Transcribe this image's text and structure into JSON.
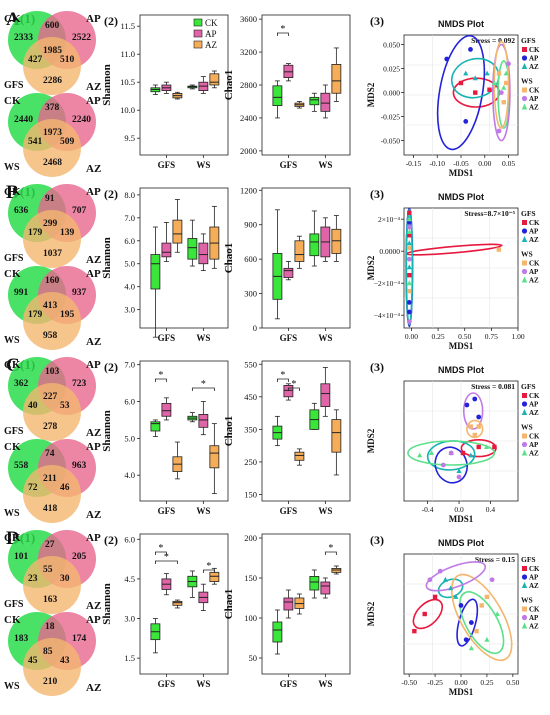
{
  "figure": {
    "colors": {
      "CK": "#39e639",
      "AP": "#e065a8",
      "AZ": "#f5ad5a",
      "venn_CK": "#29dd4b",
      "venn_AP": "#e8668f",
      "venn_AZ": "#f4b66f",
      "ellipse_CK": "#e8193f",
      "ellipse_AP": "#2323d9",
      "ellipse_AZ": "#19b3b3",
      "ellipse_WS_AP": "#c07ae6",
      "ellipse_WS_AZ": "#5ce08a"
    },
    "groups": [
      "CK",
      "AP",
      "AZ"
    ],
    "sites": [
      "GFS",
      "WS"
    ],
    "panels": [
      {
        "letter": "A",
        "sub1": "(1)",
        "sub2": "(2)",
        "sub3": "(3)",
        "venn": [
          {
            "site": "GFS",
            "only_CK": "2333",
            "only_AP": "2522",
            "only_AZ": "2286",
            "CK_AP": "600",
            "CK_AZ": "427",
            "AP_AZ": "510",
            "all": "1985"
          },
          {
            "site": "WS",
            "only_CK": "2440",
            "only_AP": "2240",
            "only_AZ": "2468",
            "CK_AP": "378",
            "CK_AZ": "541",
            "AP_AZ": "509",
            "all": "1973"
          }
        ],
        "shannon": {
          "ylabel": "Shannon",
          "ticks": [
            "9.5",
            "10.0",
            "10.5",
            "11.0",
            "11.5"
          ],
          "ylim": [
            9.2,
            11.7
          ],
          "sig": []
        },
        "chao": {
          "ylabel": "Chao1",
          "ticks": [
            "2000",
            "2400",
            "2800",
            "3200",
            "3600"
          ],
          "ylim": [
            1950,
            3650
          ],
          "sig": [
            {
              "site": 0,
              "a": 0,
              "b": 1,
              "label": "*"
            }
          ]
        },
        "nmds": {
          "title": "NMDS Plot",
          "stress": "Stress = 0.092",
          "xlabel": "MDS1",
          "ylabel": "MDS2",
          "xticks": [
            "-0.15",
            "-0.10",
            "-0.05",
            "0.00",
            "0.05"
          ],
          "yticks": [
            "-0.050",
            "-0.025",
            "0.000",
            "0.025",
            "0.050"
          ],
          "xlim": [
            -0.17,
            0.07
          ],
          "ylim": [
            -0.065,
            0.06
          ]
        }
      },
      {
        "letter": "B",
        "sub1": "(1)",
        "sub2": "(2)",
        "sub3": "(3)",
        "venn": [
          {
            "site": "GFS",
            "only_CK": "636",
            "only_AP": "707",
            "only_AZ": "1037",
            "CK_AP": "91",
            "CK_AZ": "179",
            "AP_AZ": "139",
            "all": "299"
          },
          {
            "site": "WS",
            "only_CK": "991",
            "only_AP": "937",
            "only_AZ": "958",
            "CK_AP": "160",
            "CK_AZ": "179",
            "AP_AZ": "195",
            "all": "413"
          }
        ],
        "shannon": {
          "ylabel": "Shannon",
          "ticks": [
            "3.0",
            "4.0",
            "5.0",
            "6.0",
            "7.0",
            "8.0"
          ],
          "ylim": [
            2.2,
            8.3
          ],
          "sig": []
        },
        "chao": {
          "ylabel": "Chao1",
          "ticks": [
            "0",
            "300",
            "600",
            "900",
            "1200"
          ],
          "ylim": [
            0,
            1220
          ],
          "sig": []
        },
        "nmds": {
          "title": "NMDS Plot",
          "stress": "Stress=8.7×10⁻⁵",
          "xlabel": "MDS1",
          "ylabel": "MDS2",
          "xticks": [
            "0.00",
            "0.25",
            "0.50",
            "0.75",
            "1.00"
          ],
          "yticks": [
            "−4×10⁻⁴",
            "−2×10⁻⁴",
            "0.0000",
            "2×10⁻⁴"
          ],
          "xlim": [
            -0.07,
            1.0
          ],
          "ylim": [
            -0.00048,
            0.00027
          ]
        }
      },
      {
        "letter": "C",
        "sub1": "(1)",
        "sub2": "(2)",
        "sub3": "(3)",
        "venn": [
          {
            "site": "GFS",
            "only_CK": "362",
            "only_AP": "723",
            "only_AZ": "278",
            "CK_AP": "103",
            "CK_AZ": "40",
            "AP_AZ": "53",
            "all": "227"
          },
          {
            "site": "WS",
            "only_CK": "558",
            "only_AP": "963",
            "only_AZ": "418",
            "CK_AP": "74",
            "CK_AZ": "72",
            "AP_AZ": "46",
            "all": "211"
          }
        ],
        "shannon": {
          "ylabel": "Shannon",
          "ticks": [
            "4.0",
            "5.0",
            "6.0",
            "7.0"
          ],
          "ylim": [
            3.3,
            7.1
          ],
          "sig": [
            {
              "site": 0,
              "a": 0,
              "b": 1,
              "label": "*"
            },
            {
              "site": 1,
              "a": 0,
              "b": 2,
              "label": "*"
            }
          ]
        },
        "chao": {
          "ylabel": "Chao1",
          "ticks": [
            "150",
            "250",
            "350",
            "450",
            "550"
          ],
          "ylim": [
            130,
            560
          ],
          "sig": [
            {
              "site": 0,
              "a": 0,
              "b": 1,
              "label": "*"
            },
            {
              "site": 0,
              "a": 1,
              "b": 2,
              "label": "*"
            }
          ]
        },
        "nmds": {
          "title": "NMDS Plot",
          "stress": "Stress = 0.081",
          "xlabel": "MDS1",
          "ylabel": "MDS2",
          "xticks": [
            "-0.4",
            "0.0",
            "0.4"
          ],
          "yticks": [],
          "xlim": [
            -0.7,
            0.75
          ],
          "ylim": [
            -0.5,
            0.5
          ]
        }
      },
      {
        "letter": "D",
        "sub1": "(1)",
        "sub2": "(2)",
        "sub3": "(3)",
        "venn": [
          {
            "site": "GFS",
            "only_CK": "101",
            "only_AP": "205",
            "only_AZ": "163",
            "CK_AP": "27",
            "CK_AZ": "23",
            "AP_AZ": "30",
            "all": "55"
          },
          {
            "site": "WS",
            "only_CK": "183",
            "only_AP": "174",
            "only_AZ": "210",
            "CK_AP": "18",
            "CK_AZ": "45",
            "AP_AZ": "43",
            "all": "85"
          }
        ],
        "shannon": {
          "ylabel": "Shannon",
          "ticks": [
            "1.5",
            "3.0",
            "4.5",
            "6.0"
          ],
          "ylim": [
            0.9,
            6.2
          ],
          "sig": [
            {
              "site": 0,
              "a": 0,
              "b": 1,
              "label": "*"
            },
            {
              "site": 0,
              "a": 0,
              "b": 2,
              "label": "*"
            },
            {
              "site": 1,
              "a": 1,
              "b": 2,
              "label": "*"
            }
          ]
        },
        "chao": {
          "ylabel": "Chao1",
          "ticks": [
            "50",
            "100",
            "150",
            "200"
          ],
          "ylim": [
            30,
            205
          ],
          "sig": [
            {
              "site": 1,
              "a": 1,
              "b": 2,
              "label": "*"
            }
          ]
        },
        "nmds": {
          "title": "NMDS Plot",
          "stress": "Stress = 0.15",
          "xlabel": "MDS1",
          "ylabel": "MDS2",
          "xticks": [
            "-0.50",
            "-0.25",
            "0.00",
            "0.25",
            "0.50"
          ],
          "yticks": [],
          "xlim": [
            -0.55,
            0.55
          ],
          "ylim": [
            -0.35,
            0.35
          ]
        }
      }
    ],
    "legend_nmds": {
      "GFS": [
        "CK",
        "AP",
        "AZ"
      ],
      "WS": [
        "CK",
        "AP",
        "AZ"
      ]
    }
  },
  "chart_data": [
    {
      "type": "box",
      "panel": "A2",
      "metric": "Shannon",
      "categories": [
        "GFS",
        "WS"
      ],
      "series": [
        {
          "name": "CK",
          "boxes": [
            [
              10.28,
              10.33,
              10.37,
              10.4,
              10.45
            ],
            [
              10.38,
              10.4,
              10.42,
              10.43,
              10.45
            ]
          ]
        },
        {
          "name": "AP",
          "boxes": [
            [
              10.3,
              10.35,
              10.4,
              10.45,
              10.5
            ],
            [
              10.3,
              10.35,
              10.43,
              10.5,
              10.6
            ]
          ]
        },
        {
          "name": "AZ",
          "boxes": [
            [
              10.2,
              10.22,
              10.26,
              10.3,
              10.32
            ],
            [
              10.4,
              10.45,
              10.5,
              10.65,
              10.7
            ]
          ]
        }
      ]
    },
    {
      "type": "box",
      "panel": "A2",
      "metric": "Chao1",
      "categories": [
        "GFS",
        "WS"
      ],
      "series": [
        {
          "name": "CK",
          "boxes": [
            [
              2400,
              2550,
              2650,
              2790,
              2850
            ]
          ],
          "ws": [
            2480,
            2560,
            2620,
            2650,
            2700
          ]
        },
        {
          "name": "AP",
          "boxes": [
            [
              2850,
              2890,
              2960,
              3040,
              3060
            ]
          ],
          "ws": [
            2400,
            2480,
            2580,
            2700,
            2800
          ]
        },
        {
          "name": "AZ",
          "boxes": [
            [
              2520,
              2540,
              2560,
              2580,
              2600
            ]
          ],
          "ws": [
            2600,
            2700,
            2850,
            3050,
            3250
          ]
        }
      ]
    },
    {
      "type": "box",
      "panel": "B2",
      "metric": "Shannon",
      "series_names": [
        "CK",
        "AP",
        "AZ"
      ]
    },
    {
      "type": "box",
      "panel": "B2",
      "metric": "Chao1",
      "series_names": [
        "CK",
        "AP",
        "AZ"
      ]
    },
    {
      "type": "box",
      "panel": "C2",
      "metric": "Shannon",
      "series_names": [
        "CK",
        "AP",
        "AZ"
      ]
    },
    {
      "type": "box",
      "panel": "C2",
      "metric": "Chao1",
      "series_names": [
        "CK",
        "AP",
        "AZ"
      ]
    },
    {
      "type": "box",
      "panel": "D2",
      "metric": "Shannon",
      "series_names": [
        "CK",
        "AP",
        "AZ"
      ]
    },
    {
      "type": "box",
      "panel": "D2",
      "metric": "Chao1",
      "series_names": [
        "CK",
        "AP",
        "AZ"
      ]
    }
  ]
}
